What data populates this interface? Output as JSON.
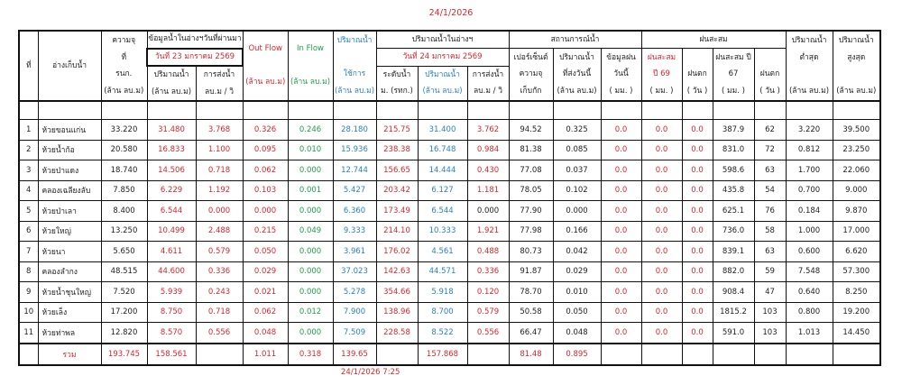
{
  "top_date": "24/1/2026",
  "bottom_timestamp": "24/1/2026 7:25",
  "header": {
    "no": "ที่",
    "reservoir": "อ่างเก็บน้ำ",
    "capacity": [
      "ความจุ",
      "ที่",
      "รนก.",
      "(ล้าน ลบ.ม)"
    ],
    "prev_group": "ข้อมูลน้ำในอ่างฯวันที่ผ่านมา",
    "prev_date": "วันที่ 23 มกราคม 2569",
    "prev_volume": [
      "ปริมาณน้ำ",
      "(ล้าน ลบ.ม)"
    ],
    "prev_release": [
      "การส่งน้ำ",
      "ลบ.ม / วิ"
    ],
    "outflow": [
      "Out Flow",
      "(ล้าน ลบ.ม)"
    ],
    "inflow": [
      "In Flow",
      "(ล้าน ลบ.ม)"
    ],
    "usable": [
      "ปริมาณน้ำ",
      "ใช้การ",
      "(ล้าน ลบ.ม)"
    ],
    "curr_group": "ปริมาณน้ำในอ่างฯ",
    "curr_date": "วันที่ 24 มกราคม 2569",
    "level": [
      "ระดับน้ำ",
      "ม. (รทก.)"
    ],
    "curr_volume": [
      "ปริมาณน้ำ",
      "(ล้าน ลบ.ม)"
    ],
    "curr_release": [
      "การส่งน้ำ",
      "ลบ.ม / วิ"
    ],
    "status_group": "สถานการณ์น้ำ",
    "percent": [
      "เปอร์เซ็นต์",
      "ความจุ",
      "เก็บกัก"
    ],
    "release_today": [
      "ปริมาณน้ำ",
      "ที่ส่งวันนี้",
      "(ล้าน ลบ.ม)"
    ],
    "rain_today": [
      "ข้อมูลฝน",
      "วันนี้",
      "( มม. )"
    ],
    "rain_group": "ฝนสะสม",
    "rain69": [
      "ฝนสะสม",
      "ปี 69",
      "( มม. )"
    ],
    "rain_days1": [
      "ฝนตก",
      "( วัน )"
    ],
    "rain67": [
      "ฝนสะสม ปี",
      "67",
      "( มม. )"
    ],
    "rain_days2": [
      "ฝนตก",
      "( วัน )"
    ],
    "min_vol": [
      "ปริมาณน้ำ",
      "ต่ำสุด",
      "(ล้าน ลบ.ม)"
    ],
    "max_vol": [
      "ปริมาณน้ำ",
      "สูงสุด",
      "(ล้าน ลบ.ม)"
    ]
  },
  "rows": [
    {
      "no": "1",
      "name": "ห้วยขอนแก่น",
      "cap": "33.220",
      "pvol": "31.480",
      "prel": "3.768",
      "out": "0.326",
      "in": "0.246",
      "use": "28.180",
      "lvl": "215.75",
      "cvol": "31.400",
      "crel": "3.762",
      "pct": "94.52",
      "reltoday": "0.325",
      "rain": "0.0",
      "r69": "0.0",
      "d1": "0.0",
      "r67": "387.9",
      "d2": "62",
      "min": "3.220",
      "max": "39.500"
    },
    {
      "no": "2",
      "name": "ห้วยน้ำก้อ",
      "cap": "20.580",
      "pvol": "16.833",
      "prel": "1.100",
      "out": "0.095",
      "in": "0.010",
      "use": "15.936",
      "lvl": "238.38",
      "cvol": "16.748",
      "crel": "0.984",
      "pct": "81.38",
      "reltoday": "0.085",
      "rain": "0.0",
      "r69": "0.0",
      "d1": "0.0",
      "r67": "831.0",
      "d2": "72",
      "min": "0.812",
      "max": "23.250"
    },
    {
      "no": "3",
      "name": "ห้วยป่าแดง",
      "cap": "18.740",
      "pvol": "14.506",
      "prel": "0.718",
      "out": "0.062",
      "in": "0.000",
      "use": "12.744",
      "lvl": "156.65",
      "cvol": "14.444",
      "crel": "0.430",
      "pct": "77.08",
      "reltoday": "0.037",
      "rain": "0.0",
      "r69": "0.0",
      "d1": "0.0",
      "r67": "598.6",
      "d2": "63",
      "min": "1.700",
      "max": "22.060"
    },
    {
      "no": "4",
      "name": "คลองเฉลียงลับ",
      "cap": "7.850",
      "pvol": "6.229",
      "prel": "1.192",
      "out": "0.103",
      "in": "0.001",
      "use": "5.427",
      "lvl": "203.42",
      "cvol": "6.127",
      "crel": "1.181",
      "pct": "78.05",
      "reltoday": "0.102",
      "rain": "0.0",
      "r69": "0.0",
      "d1": "0.0",
      "r67": "435.8",
      "d2": "54",
      "min": "0.700",
      "max": "9.000"
    },
    {
      "no": "5",
      "name": "ห้วยป่าเลา",
      "cap": "8.400",
      "pvol": "6.544",
      "prel": "0.000",
      "out": "0.000",
      "in": "0.000",
      "use": "6.360",
      "lvl": "173.49",
      "cvol": "6.544",
      "crel": "0.000",
      "pct": "77.90",
      "reltoday": "0.000",
      "rain": "0.0",
      "r69": "0.0",
      "d1": "0.0",
      "r67": "625.1",
      "d2": "76",
      "min": "0.184",
      "max": "9.870"
    },
    {
      "no": "6",
      "name": "ห้วยใหญ่",
      "cap": "13.250",
      "pvol": "10.499",
      "prel": "2.488",
      "out": "0.215",
      "in": "0.049",
      "use": "9.333",
      "lvl": "214.10",
      "cvol": "10.333",
      "crel": "1.921",
      "pct": "77.98",
      "reltoday": "0.166",
      "rain": "0.0",
      "r69": "0.0",
      "d1": "0.0",
      "r67": "736.0",
      "d2": "58",
      "min": "1.000",
      "max": "17.000"
    },
    {
      "no": "7",
      "name": "ห้วยนา",
      "cap": "5.650",
      "pvol": "4.611",
      "prel": "0.579",
      "out": "0.050",
      "in": "0.000",
      "use": "3.961",
      "lvl": "176.02",
      "cvol": "4.561",
      "crel": "0.488",
      "pct": "80.73",
      "reltoday": "0.042",
      "rain": "0.0",
      "r69": "0.0",
      "d1": "0.0",
      "r67": "839.1",
      "d2": "63",
      "min": "0.600",
      "max": "6.620"
    },
    {
      "no": "8",
      "name": "คลองลำกง",
      "cap": "48.515",
      "pvol": "44.600",
      "prel": "0.336",
      "out": "0.029",
      "in": "0.000",
      "use": "37.023",
      "lvl": "142.63",
      "cvol": "44.571",
      "crel": "0.336",
      "pct": "91.87",
      "reltoday": "0.029",
      "rain": "0.0",
      "r69": "0.0",
      "d1": "0.0",
      "r67": "882.0",
      "d2": "59",
      "min": "7.548",
      "max": "57.300"
    },
    {
      "no": "9",
      "name": "ห้วยน้ำชุนใหญ่",
      "cap": "7.520",
      "pvol": "5.939",
      "prel": "0.243",
      "out": "0.021",
      "in": "0.000",
      "use": "5.278",
      "lvl": "354.66",
      "cvol": "5.918",
      "crel": "0.120",
      "pct": "78.70",
      "reltoday": "0.010",
      "rain": "0.0",
      "r69": "0.0",
      "d1": "0.0",
      "r67": "908.4",
      "d2": "47",
      "min": "0.640",
      "max": "8.250"
    },
    {
      "no": "10",
      "name": "ห้วยเล็ง",
      "cap": "17.200",
      "pvol": "8.750",
      "prel": "0.718",
      "out": "0.062",
      "in": "0.012",
      "use": "7.900",
      "lvl": "138.96",
      "cvol": "8.700",
      "crel": "0.579",
      "pct": "50.58",
      "reltoday": "0.050",
      "rain": "0.0",
      "r69": "0.0",
      "d1": "0.0",
      "r67": "1815.2",
      "d2": "103",
      "min": "0.800",
      "max": "19.200"
    },
    {
      "no": "11",
      "name": "ห้วยท่าพล",
      "cap": "12.820",
      "pvol": "8.570",
      "prel": "0.556",
      "out": "0.048",
      "in": "0.000",
      "use": "7.509",
      "lvl": "228.58",
      "cvol": "8.522",
      "crel": "0.556",
      "pct": "66.47",
      "reltoday": "0.048",
      "rain": "0.0",
      "r69": "0.0",
      "d1": "0.0",
      "r67": "591.0",
      "d2": "103",
      "min": "1.013",
      "max": "14.450"
    }
  ],
  "total": {
    "label": "รวม",
    "cap": "193.745",
    "pvol": "158.561",
    "out": "1.011",
    "in": "0.318",
    "use": "139.65",
    "cvol": "157.868",
    "pct": "81.48",
    "reltoday": "0.895"
  },
  "colors": {
    "red": "#d9252a",
    "green": "#1f9e48",
    "blue": "#2a7fc4",
    "text": "#222222"
  }
}
